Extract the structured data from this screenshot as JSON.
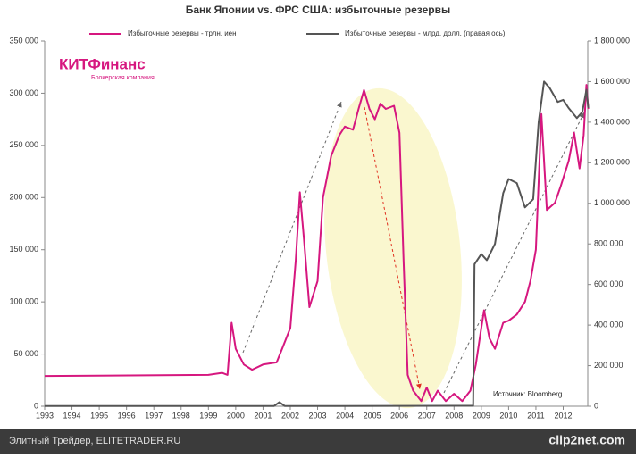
{
  "chart_data": {
    "type": "line",
    "title": "Банк Японии vs. ФРС США: избыточные резервы",
    "logo": "КИТФинанс",
    "logo_subtitle": "Брокерская компания",
    "annotation": "Источник: Bloomberg",
    "xlim": [
      1993,
      2012.9
    ],
    "xticks": [
      1993,
      1994,
      1995,
      1996,
      1997,
      1998,
      1999,
      2000,
      2001,
      2002,
      2003,
      2004,
      2005,
      2006,
      2007,
      2008,
      2009,
      2010,
      2011,
      2012
    ],
    "ylim": [
      0,
      350000
    ],
    "yticks": [
      0,
      {
        "value": 50000,
        "label": "50 000"
      },
      {
        "value": 100000,
        "label": "100 000"
      },
      {
        "value": 150000,
        "label": "150 000"
      },
      {
        "value": 200000,
        "label": "200 000"
      },
      {
        "value": 250000,
        "label": "250 000"
      },
      {
        "value": 300000,
        "label": "300 000"
      },
      {
        "value": 350000,
        "label": "350 000"
      }
    ],
    "y2lim": [
      0,
      1800000
    ],
    "y2ticks": [
      0,
      {
        "value": 200000,
        "label": "200 000"
      },
      {
        "value": 400000,
        "label": "400 000"
      },
      {
        "value": 600000,
        "label": "600 000"
      },
      {
        "value": 800000,
        "label": "800 000"
      },
      {
        "value": 1000000,
        "label": "1 000 000"
      },
      {
        "value": 1200000,
        "label": "1 200 000"
      },
      {
        "value": 1400000,
        "label": "1 400 000"
      },
      {
        "value": 1600000,
        "label": "1 600 000"
      },
      {
        "value": 1800000,
        "label": "1 800 000"
      }
    ],
    "series": [
      {
        "name": "Избыточные резервы - трлн. иен",
        "color": "#d6177f",
        "x": [
          1993,
          1999.0,
          1999.5,
          1999.7,
          1999.85,
          2000.0,
          2000.3,
          2000.6,
          2001.0,
          2001.5,
          2001.7,
          2002.0,
          2002.2,
          2002.35,
          2002.5,
          2002.7,
          2003.0,
          2003.2,
          2003.5,
          2003.8,
          2004.0,
          2004.3,
          2004.5,
          2004.7,
          2004.9,
          2005.1,
          2005.3,
          2005.5,
          2005.8,
          2006.0,
          2006.15,
          2006.3,
          2006.5,
          2006.8,
          2007.0,
          2007.2,
          2007.4,
          2007.7,
          2008.0,
          2008.3,
          2008.6,
          2008.8,
          2009.0,
          2009.1,
          2009.3,
          2009.5,
          2009.8,
          2010.0,
          2010.3,
          2010.6,
          2010.8,
          2011.0,
          2011.2,
          2011.4,
          2011.7,
          2011.9,
          2012.2,
          2012.4,
          2012.6,
          2012.75,
          2012.85,
          2012.92
        ],
        "values": [
          29000,
          30000,
          32000,
          30000,
          80000,
          55000,
          40000,
          35000,
          40000,
          42000,
          55000,
          75000,
          140000,
          205000,
          160000,
          95000,
          120000,
          200000,
          240000,
          260000,
          268000,
          265000,
          285000,
          303000,
          285000,
          275000,
          290000,
          285000,
          288000,
          262000,
          140000,
          30000,
          15000,
          5000,
          18000,
          5000,
          15000,
          5000,
          12000,
          5000,
          15000,
          40000,
          75000,
          92000,
          65000,
          55000,
          80000,
          82000,
          88000,
          100000,
          120000,
          150000,
          280000,
          188000,
          195000,
          210000,
          235000,
          262000,
          228000,
          260000,
          308000,
          285000
        ]
      },
      {
        "name": "Избыточные резервы - млрд. долл. (правая ось)",
        "color": "#555555",
        "axis": "y2",
        "x": [
          1993,
          2001.4,
          2001.6,
          2001.8,
          2008.7,
          2008.75,
          2009.0,
          2009.2,
          2009.5,
          2009.8,
          2010.0,
          2010.3,
          2010.6,
          2010.9,
          2011.1,
          2011.3,
          2011.5,
          2011.8,
          2012.0,
          2012.2,
          2012.5,
          2012.7,
          2012.85,
          2012.92
        ],
        "values": [
          1000,
          1000,
          20000,
          1000,
          2000,
          700000,
          750000,
          720000,
          800000,
          1050000,
          1120000,
          1100000,
          980000,
          1020000,
          1400000,
          1600000,
          1570000,
          1500000,
          1510000,
          1470000,
          1420000,
          1450000,
          1560000,
          1470000
        ]
      }
    ]
  },
  "footer": {
    "left": "Элитный Трейдер, ELITETRADER.RU",
    "right": "clip2net.com"
  }
}
